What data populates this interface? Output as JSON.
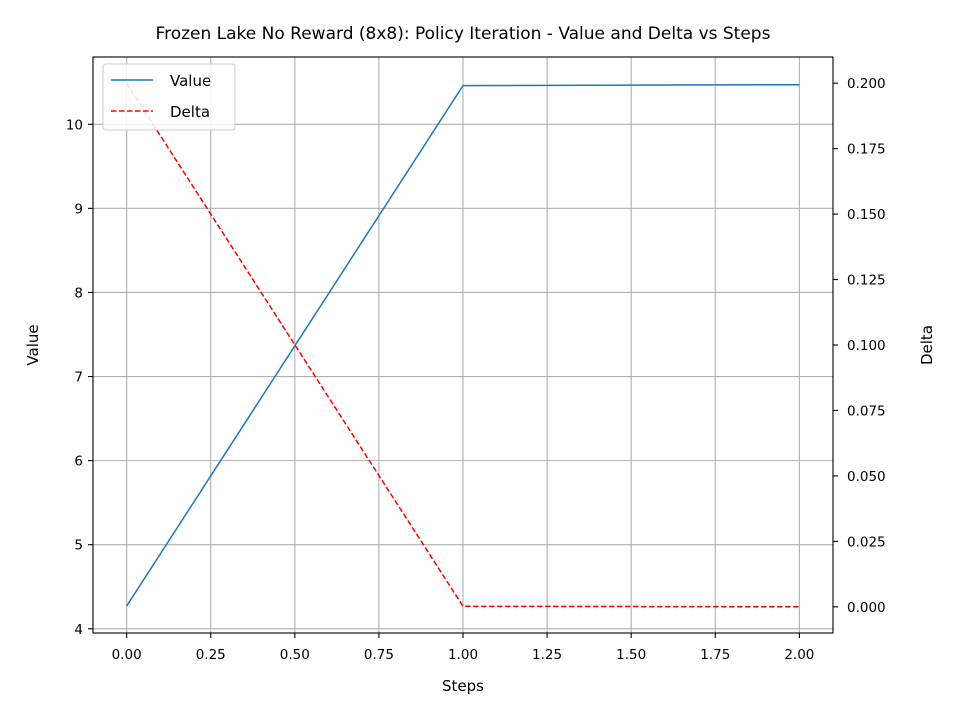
{
  "chart_data": {
    "type": "line",
    "title": "Frozen Lake No Reward (8x8): Policy Iteration - Value and Delta vs Steps",
    "xlabel": "Steps",
    "ylabel": "Value",
    "y2label": "Delta",
    "xlim": [
      -0.1,
      2.1
    ],
    "ylim": [
      3.95,
      10.8
    ],
    "y2lim": [
      -0.01,
      0.21
    ],
    "xticks": [
      0.0,
      0.25,
      0.5,
      0.75,
      1.0,
      1.25,
      1.5,
      1.75,
      2.0
    ],
    "xtick_labels": [
      "0.00",
      "0.25",
      "0.50",
      "0.75",
      "1.00",
      "1.25",
      "1.50",
      "1.75",
      "2.00"
    ],
    "yticks": [
      4,
      5,
      6,
      7,
      8,
      9,
      10
    ],
    "ytick_labels": [
      "4",
      "5",
      "6",
      "7",
      "8",
      "9",
      "10"
    ],
    "y2ticks": [
      0.0,
      0.025,
      0.05,
      0.075,
      0.1,
      0.125,
      0.15,
      0.175,
      0.2
    ],
    "y2tick_labels": [
      "0.000",
      "0.025",
      "0.050",
      "0.075",
      "0.100",
      "0.125",
      "0.150",
      "0.175",
      "0.200"
    ],
    "grid": true,
    "legend_position": "top-left",
    "series": [
      {
        "name": "Value",
        "axis": "left",
        "color": "#1f77b4",
        "style": "solid",
        "x": [
          0,
          1,
          2
        ],
        "y": [
          4.27,
          10.46,
          10.47
        ]
      },
      {
        "name": "Delta",
        "axis": "right",
        "color": "#ff0000",
        "style": "dashed",
        "x": [
          0,
          1,
          2
        ],
        "y": [
          0.2,
          0.0002,
          0.0
        ]
      }
    ]
  }
}
